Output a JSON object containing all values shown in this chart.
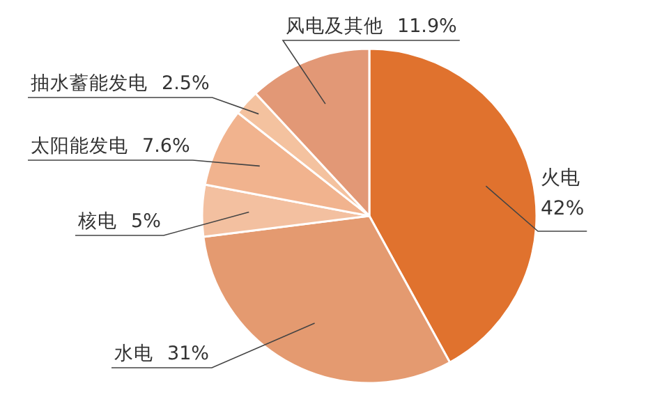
{
  "chart_data": {
    "type": "pie",
    "categories": [
      "火电",
      "水电",
      "核电",
      "太阳能发电",
      "抽水蓄能发电",
      "风电及其他"
    ],
    "values": [
      42,
      31,
      5,
      7.6,
      2.5,
      11.9
    ],
    "colors": [
      "#e0722e",
      "#e49a70",
      "#f3c0a0",
      "#f1b38e",
      "#f4c29f",
      "#e29876"
    ],
    "value_labels": [
      "42%",
      "31%",
      "5%",
      "7.6%",
      "2.5%",
      "11.9%"
    ]
  }
}
